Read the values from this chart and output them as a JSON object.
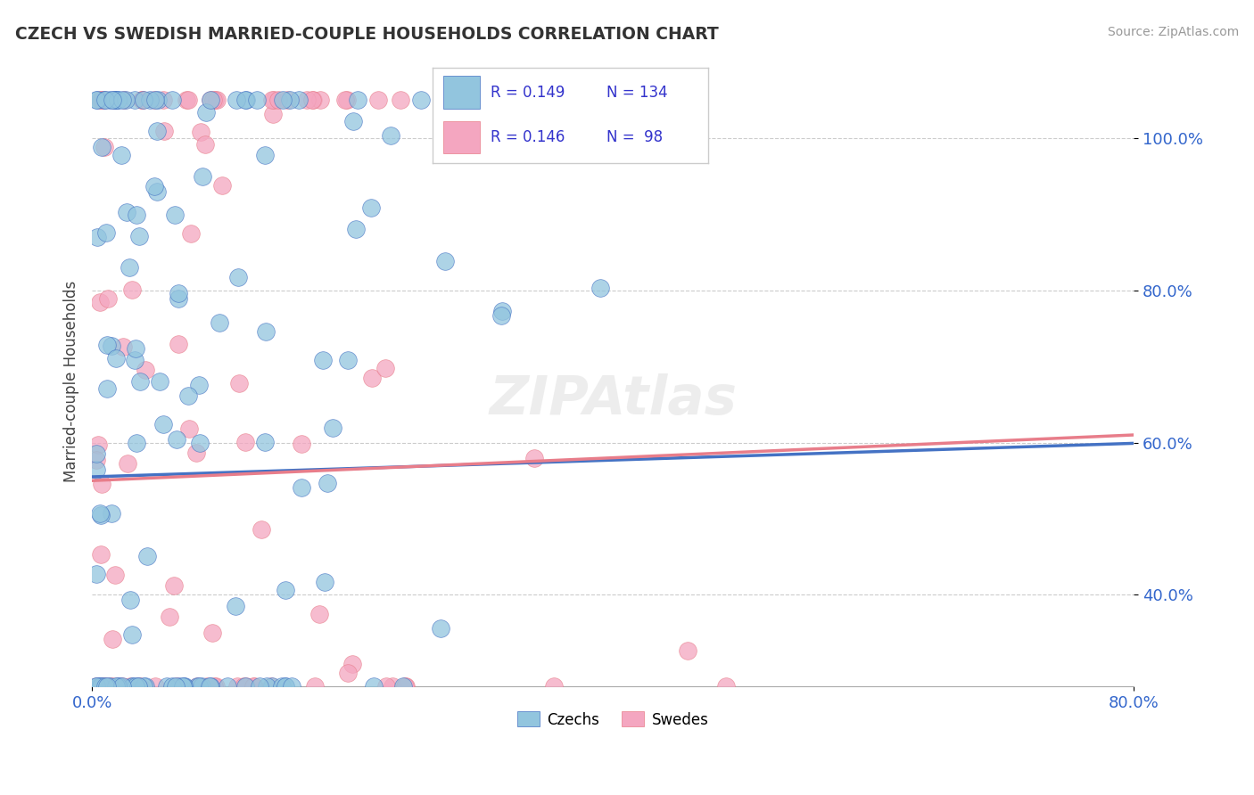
{
  "title": "CZECH VS SWEDISH MARRIED-COUPLE HOUSEHOLDS CORRELATION CHART",
  "source": "Source: ZipAtlas.com",
  "ylabel": "Married-couple Households",
  "xlim": [
    0.0,
    80.0
  ],
  "ylim": [
    28.0,
    108.0
  ],
  "yticks": [
    40.0,
    60.0,
    80.0,
    100.0
  ],
  "ytick_labels": [
    "40.0%",
    "60.0%",
    "80.0%",
    "100.0%"
  ],
  "czech_color": "#92c5de",
  "swedish_color": "#f4a6c0",
  "czech_line_color": "#4472c4",
  "swedish_line_color": "#e87d8a",
  "legend_text_color": "#3333cc",
  "czech_slope": 0.055,
  "czech_intercept": 55.5,
  "swedish_slope": 0.075,
  "swedish_intercept": 55.0,
  "watermark": "ZIPAtlas",
  "watermark_color": "#dddddd"
}
